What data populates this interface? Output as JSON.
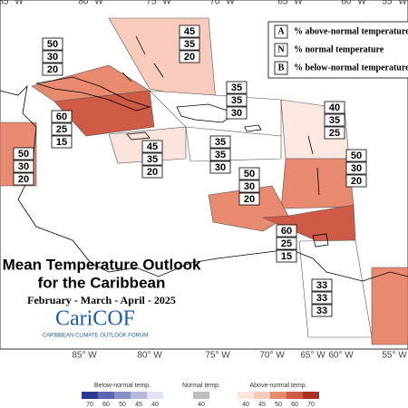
{
  "header": {
    "title_line1": "Mean Temperature Outlook",
    "title_line2": "for the Caribbean",
    "period": "February - March - April - 2025"
  },
  "logo": {
    "name": "CariCOF",
    "subtitle": "CARIBBEAN CLIMATE OUTLOOK FORUM"
  },
  "longitudes": [
    "85° W",
    "80° W",
    "75° W",
    "70° W",
    "65° W",
    "60° W",
    "55° W"
  ],
  "key": [
    {
      "letter": "A",
      "text": "% above-normal temperature"
    },
    {
      "letter": "N",
      "text": "% normal temperature"
    },
    {
      "letter": "B",
      "text": "% below-normal temperature"
    }
  ],
  "regions": [
    {
      "values": [
        45,
        35,
        20
      ],
      "color": "#f9cbbd"
    },
    {
      "values": [
        50,
        30,
        20
      ],
      "color": "#e88a70"
    },
    {
      "values": [
        60,
        25,
        15
      ],
      "color": "#cf5a45"
    },
    {
      "values": [
        50,
        30,
        20
      ],
      "color": "#e88a70"
    },
    {
      "values": [
        45,
        35,
        20
      ],
      "color": "#fbe4dc"
    },
    {
      "values": [
        35,
        35,
        30
      ],
      "color": "#ffffff"
    },
    {
      "values": [
        35,
        35,
        30
      ],
      "color": "#ffffff"
    },
    {
      "values": [
        40,
        35,
        25
      ],
      "color": "#fde8e1"
    },
    {
      "values": [
        50,
        30,
        20
      ],
      "color": "#e88a70"
    },
    {
      "values": [
        50,
        30,
        20
      ],
      "color": "#e88a70"
    },
    {
      "values": [
        60,
        25,
        15
      ],
      "color": "#cf5a45"
    },
    {
      "values": [
        33,
        33,
        33
      ],
      "color": "#ffffff"
    }
  ],
  "colorbar": {
    "below": {
      "label": "Below-normal temp.",
      "ticks": [
        "70",
        "60",
        "50",
        "45",
        "40"
      ],
      "colors": [
        "#2b3a8f",
        "#5a66b0",
        "#8890c8",
        "#b5badd",
        "#e2e4f1"
      ]
    },
    "normal": {
      "label": "Normal temp.",
      "ticks": [
        "40"
      ],
      "colors": [
        "#bdbdbd"
      ]
    },
    "above": {
      "label": "Above-normal temp.",
      "ticks": [
        "40",
        "45",
        "50",
        "60",
        "70"
      ],
      "colors": [
        "#fde4dc",
        "#f9cbbd",
        "#e88a70",
        "#cf5a45",
        "#a8311f"
      ]
    }
  }
}
